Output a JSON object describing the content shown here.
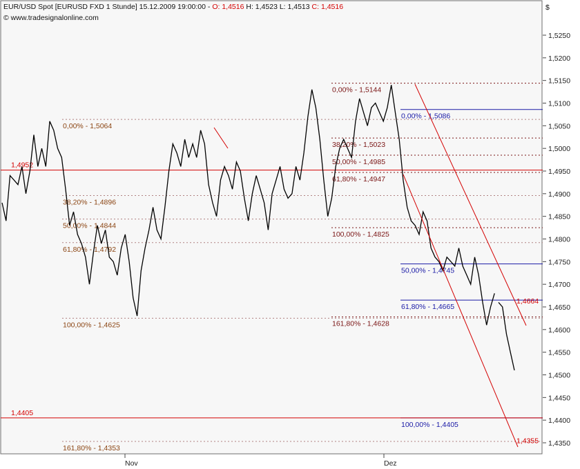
{
  "header": {
    "title_prefix": "EUR/USD Spot [EURUSD FXD  1 Stunde] 15.12.2009 19:00:00 - ",
    "open": "O: 1,4516",
    "high": " H: 1,4523",
    "low": " L: 1,4513",
    "close": " C: 1,4516",
    "copyright": "© www.tradesignalonline.com",
    "currency_symbol": "$"
  },
  "colors": {
    "price": "#000000",
    "fib_brown": "#8b4513",
    "fib_darkred": "#7a1515",
    "fib_blue": "#1a1aa6",
    "red_line": "#d40000",
    "grid_dots": "#b08080"
  },
  "chart_data": {
    "type": "line",
    "xlabels": [
      "Nov",
      "Dez"
    ],
    "ylim": [
      1.4325,
      1.5575
    ],
    "yticks": [
      {
        "v": 1.435,
        "label": "1,4350"
      },
      {
        "v": 1.44,
        "label": "1,4400"
      },
      {
        "v": 1.445,
        "label": "1,4450"
      },
      {
        "v": 1.45,
        "label": "1,4500"
      },
      {
        "v": 1.455,
        "label": "1,4550"
      },
      {
        "v": 1.46,
        "label": "1,4600"
      },
      {
        "v": 1.465,
        "label": "1,4650"
      },
      {
        "v": 1.47,
        "label": "1,4700"
      },
      {
        "v": 1.475,
        "label": "1,4750"
      },
      {
        "v": 1.48,
        "label": "1,4800"
      },
      {
        "v": 1.485,
        "label": "1,4850"
      },
      {
        "v": 1.49,
        "label": "1,4900"
      },
      {
        "v": 1.495,
        "label": "1,4950"
      },
      {
        "v": 1.5,
        "label": "1,5000"
      },
      {
        "v": 1.505,
        "label": "1,5050"
      },
      {
        "v": 1.51,
        "label": "1,5100"
      },
      {
        "v": 1.515,
        "label": "1,5150"
      },
      {
        "v": 1.52,
        "label": "1,5200"
      },
      {
        "v": 1.525,
        "label": "1,5250"
      }
    ],
    "series": [
      {
        "values": [
          1.488,
          1.484,
          1.494,
          1.493,
          1.492,
          1.496,
          1.49,
          1.495,
          1.503,
          1.496,
          1.5,
          1.496,
          1.506,
          1.504,
          1.5,
          1.498,
          1.491,
          1.483,
          1.486,
          1.481,
          1.479,
          1.476,
          1.47,
          1.477,
          1.483,
          1.479,
          1.482,
          1.476,
          1.475,
          1.472,
          1.478,
          1.481,
          1.475,
          1.467,
          1.463,
          1.473,
          1.478,
          1.482,
          1.487,
          1.482,
          1.48,
          1.487,
          1.495,
          1.501,
          1.499,
          1.496,
          1.502,
          1.498,
          1.501,
          1.498,
          1.504,
          1.501,
          1.492,
          1.488,
          1.485,
          1.493,
          1.496,
          1.494,
          1.491,
          1.497,
          1.495,
          1.489,
          1.484,
          1.49,
          1.494,
          1.491,
          1.488,
          1.482,
          1.49,
          1.493,
          1.496,
          1.491,
          1.489,
          1.49,
          1.496,
          1.493,
          1.499,
          1.507,
          1.513,
          1.509,
          1.502,
          1.493,
          1.485,
          1.489,
          1.496,
          1.5,
          1.502,
          1.5,
          1.498,
          1.506,
          1.511,
          1.508,
          1.505,
          1.509,
          1.51,
          1.508,
          1.506,
          1.509,
          1.514,
          1.508,
          1.502,
          1.493,
          1.487,
          1.484,
          1.483,
          1.481,
          1.486,
          1.484,
          1.478,
          1.476,
          1.475,
          1.473,
          1.476,
          1.475,
          1.474,
          1.478,
          1.474,
          1.472,
          1.47,
          1.476,
          1.472,
          1.466,
          1.461,
          1.465,
          1.468,
          1.466,
          1.465,
          1.459,
          1.455,
          1.451
        ],
        "gaps": [
          125
        ]
      }
    ]
  },
  "annotations": {
    "left_fib": [
      {
        "label": "0,00% - 1,5064",
        "v": 1.5064
      },
      {
        "label": "38,20% - 1,4896",
        "v": 1.4896
      },
      {
        "label": "50,00% - 1,4844",
        "v": 1.4844
      },
      {
        "label": "61,80% - 1,4792",
        "v": 1.4792
      },
      {
        "label": "100,00% - 1,4625",
        "v": 1.4625
      },
      {
        "label": "161,80% - 1,4353",
        "v": 1.4353
      }
    ],
    "mid_fib": [
      {
        "label": "0,00% - 1,5144",
        "v": 1.5144
      },
      {
        "label": "38,20% - 1,5023",
        "v": 1.5023
      },
      {
        "label": "50,00% - 1,4985",
        "v": 1.4985
      },
      {
        "label": "61,80% - 1,4947",
        "v": 1.4947
      },
      {
        "label": "100,00% - 1,4825",
        "v": 1.4825
      },
      {
        "label": "161,80% - 1,4628",
        "v": 1.4628
      }
    ],
    "right_fib": [
      {
        "label": "0,00% - 1,5086",
        "v": 1.5086
      },
      {
        "label": "50,00% - 1,4745",
        "v": 1.4745
      },
      {
        "label": "61,80% - 1,4665",
        "v": 1.4665
      },
      {
        "label": "100,00% - 1,4405",
        "v": 1.4405
      }
    ],
    "red_levels": [
      {
        "label": "1,4952",
        "v": 1.4952
      },
      {
        "label": "1,4405",
        "v": 1.4405
      }
    ],
    "channel_labels": [
      {
        "label": "1,4664",
        "v": 1.4664
      },
      {
        "label": "1,4355",
        "v": 1.4355
      }
    ]
  }
}
